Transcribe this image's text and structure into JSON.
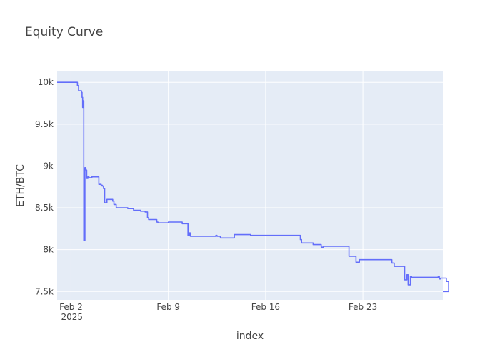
{
  "chart_data": {
    "type": "line",
    "title": "Equity Curve",
    "xlabel": "index",
    "ylabel": "ETH/BTC",
    "xlim": [
      "2025-02-01T00:00",
      "2025-02-28T18:00"
    ],
    "ylim": [
      7400,
      10130
    ],
    "grid": true,
    "legend": "none",
    "colors": {
      "plot_bg": "#e5ecf6",
      "line": "#636efa",
      "grid": "#ffffff",
      "text": "#444444"
    },
    "x_ticks": [
      {
        "at": "2025-02-02",
        "label": "Feb 2",
        "sublabel": "2025"
      },
      {
        "at": "2025-02-09",
        "label": "Feb 9"
      },
      {
        "at": "2025-02-16",
        "label": "Feb 16"
      },
      {
        "at": "2025-02-23",
        "label": "Feb 23"
      }
    ],
    "y_ticks": [
      {
        "at": 7500,
        "label": "7.5k"
      },
      {
        "at": 8000,
        "label": "8k"
      },
      {
        "at": 8500,
        "label": "8.5k"
      },
      {
        "at": 9000,
        "label": "9k"
      },
      {
        "at": 9500,
        "label": "9.5k"
      },
      {
        "at": 10000,
        "label": "10k"
      }
    ],
    "series": [
      {
        "line_shape": "step",
        "x": [
          "2025-02-01T00:00",
          "2025-02-02T11:00",
          "2025-02-02T13:00",
          "2025-02-02T18:00",
          "2025-02-02T19:00",
          "2025-02-02T20:00",
          "2025-02-02T21:00",
          "2025-02-02T22:00",
          "2025-02-03T00:00",
          "2025-02-03T01:00",
          "2025-02-03T02:00",
          "2025-02-03T03:00",
          "2025-02-03T05:00",
          "2025-02-03T07:00",
          "2025-02-03T12:00",
          "2025-02-04T00:00",
          "2025-02-04T04:00",
          "2025-02-04T06:00",
          "2025-02-04T08:00",
          "2025-02-04T10:00",
          "2025-02-04T14:00",
          "2025-02-05T00:00",
          "2025-02-05T02:00",
          "2025-02-05T06:00",
          "2025-02-06T02:00",
          "2025-02-06T12:00",
          "2025-02-07T00:00",
          "2025-02-07T08:00",
          "2025-02-07T12:00",
          "2025-02-07T14:00",
          "2025-02-08T04:00",
          "2025-02-08T06:00",
          "2025-02-09T00:00",
          "2025-02-10T00:00",
          "2025-02-10T10:00",
          "2025-02-10T12:00",
          "2025-02-10T14:00",
          "2025-02-12T10:00",
          "2025-02-12T12:00",
          "2025-02-12T18:00",
          "2025-02-13T18:00",
          "2025-02-13T20:00",
          "2025-02-14T22:00",
          "2025-02-15T00:00",
          "2025-02-18T12:00",
          "2025-02-18T14:00",
          "2025-02-18T16:00",
          "2025-02-19T10:00",
          "2025-02-20T00:00",
          "2025-02-20T04:00",
          "2025-02-22T00:00",
          "2025-02-22T12:00",
          "2025-02-22T18:00",
          "2025-02-22T20:00",
          "2025-02-22T22:00",
          "2025-02-23T00:00",
          "2025-02-25T02:00",
          "2025-02-25T06:00",
          "2025-02-25T12:00",
          "2025-02-26T00:00",
          "2025-02-26T04:00",
          "2025-02-26T06:00",
          "2025-02-26T10:00",
          "2025-02-26T12:00",
          "2025-02-26T14:00",
          "2025-02-28T10:00",
          "2025-02-28T12:00",
          "2025-02-28T14:00",
          "2025-02-29T00:00",
          "2025-02-29T04:00"
        ],
        "y": [
          10000,
          9960,
          9900,
          9880,
          9820,
          9700,
          9780,
          8110,
          8980,
          8970,
          8950,
          8850,
          8870,
          8860,
          8870,
          8780,
          8770,
          8760,
          8730,
          8560,
          8600,
          8580,
          8540,
          8500,
          8490,
          8470,
          8460,
          8450,
          8380,
          8360,
          8330,
          8320,
          8330,
          8310,
          8170,
          8200,
          8160,
          8170,
          8160,
          8140,
          8180,
          8180,
          8170,
          8170,
          8120,
          8080,
          8080,
          8060,
          8030,
          8040,
          7920,
          7850,
          7880,
          7880,
          7880,
          7880,
          7840,
          7800,
          7800,
          7640,
          7700,
          7580,
          7680,
          7670,
          7670,
          7680,
          7650,
          7660,
          7620,
          7500
        ]
      }
    ]
  }
}
